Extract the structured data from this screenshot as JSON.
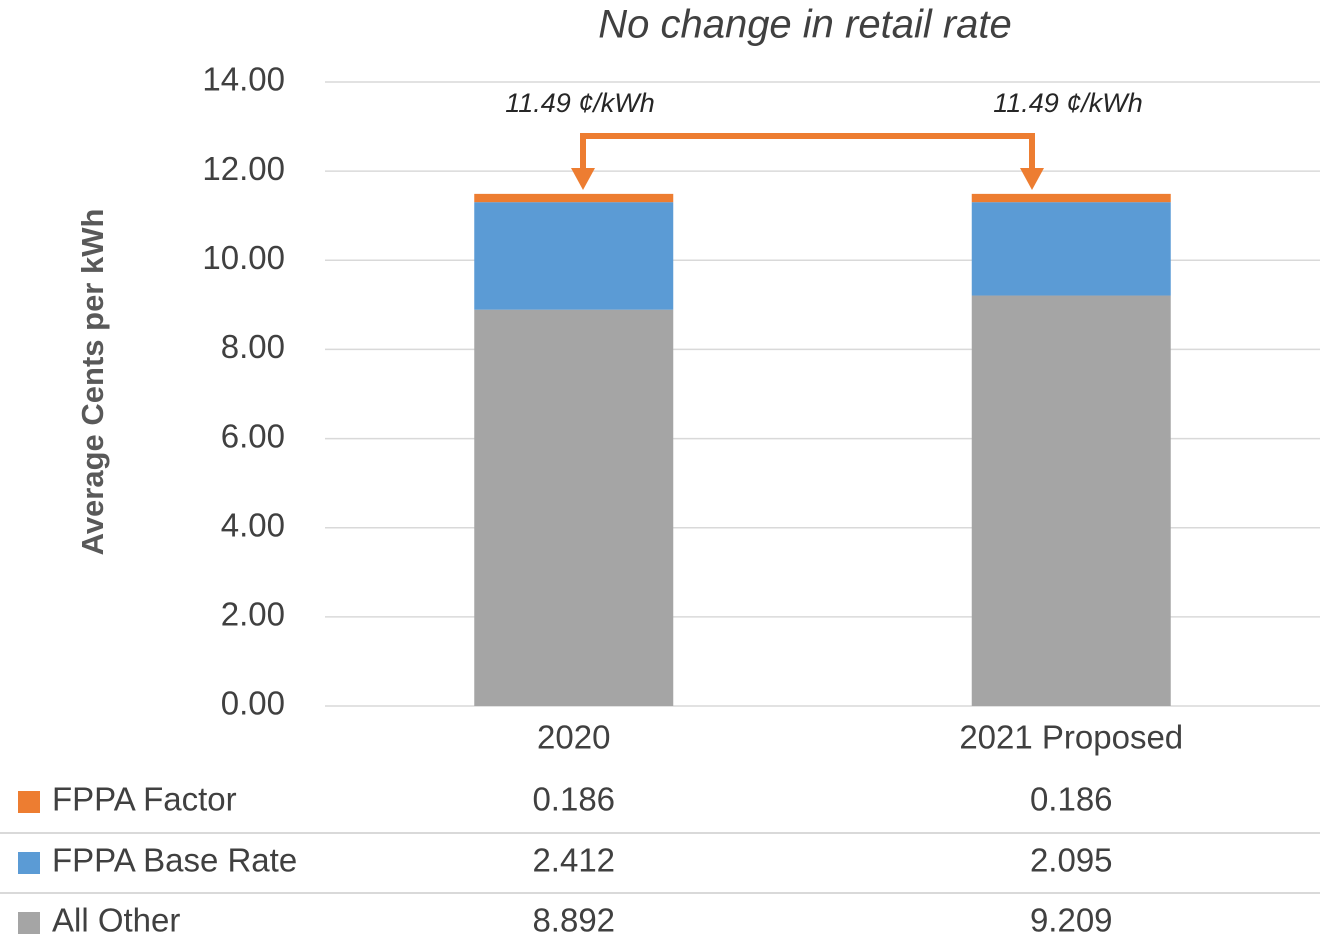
{
  "chart_data": {
    "type": "bar",
    "stacked": true,
    "title": "No change in retail rate",
    "y_label": "Average Cents per kWh",
    "categories": [
      "2020",
      "2021 Proposed"
    ],
    "series": [
      {
        "name": "FPPA Factor",
        "color": "#ed7d31",
        "values": [
          0.186,
          0.186
        ]
      },
      {
        "name": "FPPA Base Rate",
        "color": "#5b9bd5",
        "values": [
          2.412,
          2.095
        ]
      },
      {
        "name": "All Other",
        "color": "#a5a5a5",
        "values": [
          8.892,
          9.209
        ]
      }
    ],
    "annotations": [
      "11.49 ¢/kWh",
      "11.49 ¢/kWh"
    ],
    "ylim": [
      0,
      14
    ],
    "yticks": [
      {
        "value": 0,
        "label": "0.00"
      },
      {
        "value": 2,
        "label": "2.00"
      },
      {
        "value": 4,
        "label": "4.00"
      },
      {
        "value": 6,
        "label": "6.00"
      },
      {
        "value": 8,
        "label": "8.00"
      },
      {
        "value": 10,
        "label": "10.00"
      },
      {
        "value": 12,
        "label": "12.00"
      },
      {
        "value": 14,
        "label": "14.00"
      }
    ],
    "grid": true,
    "data_table": true
  }
}
